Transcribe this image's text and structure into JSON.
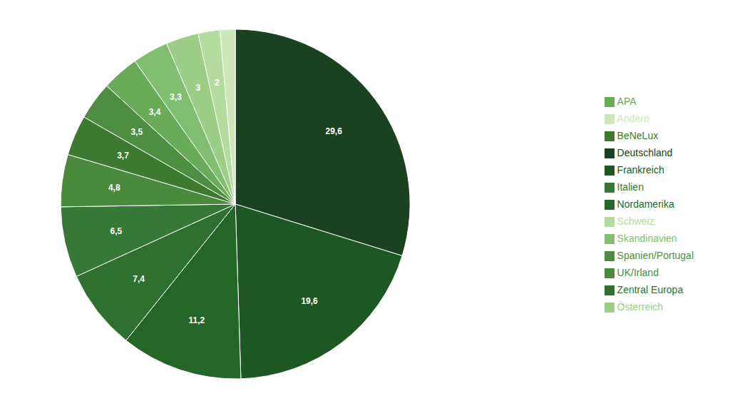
{
  "chart_data": {
    "type": "pie",
    "categories": [
      "Deutschland",
      "Frankreich",
      "Nordamerika",
      "Zentral Europa",
      "Italien",
      "UK/Irland",
      "BeNeLux",
      "Spanien/Portugal",
      "APA",
      "Skandinavien",
      "Österreich",
      "Schweiz",
      "Andere"
    ],
    "values": [
      29.6,
      19.6,
      11.2,
      7.4,
      6.5,
      4.8,
      3.7,
      3.5,
      3.4,
      3.3,
      3.0,
      2.0,
      1.4
    ],
    "value_labels": [
      "29,6",
      "19,6",
      "11,2",
      "7,4",
      "6,5",
      "4,8",
      "3,7",
      "3,5",
      "3,4",
      "3,3",
      "3",
      "2",
      null
    ],
    "colors": [
      "#1a4220",
      "#1e5724",
      "#246628",
      "#2d7030",
      "#357838",
      "#4a8a3c",
      "#3d7a30",
      "#4e8e40",
      "#6aab58",
      "#82be70",
      "#9cce88",
      "#b4dca0",
      "#cce8b8"
    ],
    "data_labels": true,
    "legend": "right"
  }
}
